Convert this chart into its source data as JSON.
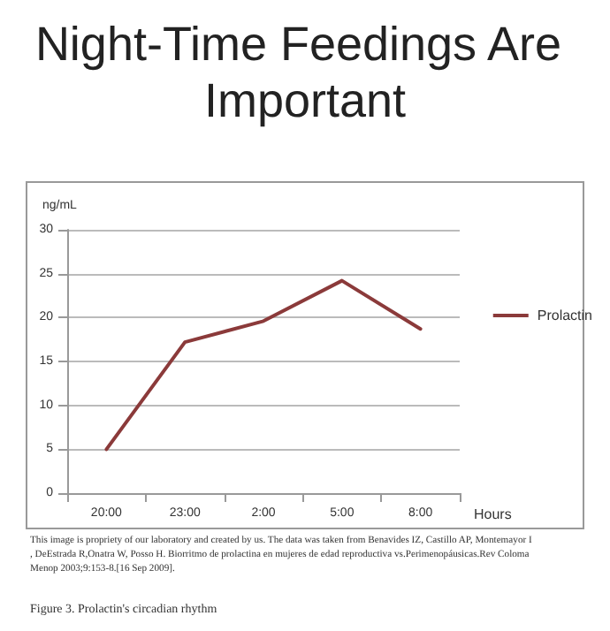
{
  "chart_data": {
    "type": "line",
    "title": "Night-Time Feedings Are Important",
    "ylabel": "ng/mL",
    "xlabel": "Hours",
    "categories": [
      "20:00",
      "23:00",
      "2:00",
      "5:00",
      "8:00"
    ],
    "series": [
      {
        "name": "Prolactin",
        "color": "#8b3a3a",
        "values": [
          5,
          17.2,
          19.6,
          24.2,
          18.7
        ]
      }
    ],
    "ylim": [
      0,
      30
    ],
    "yticks": [
      0,
      5,
      10,
      15,
      20,
      25,
      30
    ],
    "grid": "y",
    "legend": "right",
    "marker": "none",
    "annotations": [
      "This image is propriety of our laboratory and created by us. The data was taken from Benavides IZ, Castillo AP, Montemayor I, DeEstrada R,Onatra W, Posso H. Biorritmo de prolactina en mujeres de edad reproductiva vs.Perimenopáusicas.Rev Coloma Menop 2003;9:153-8.[16 Sep 2009].",
      "Figure 3. Prolactin's circadian rhythm"
    ]
  }
}
